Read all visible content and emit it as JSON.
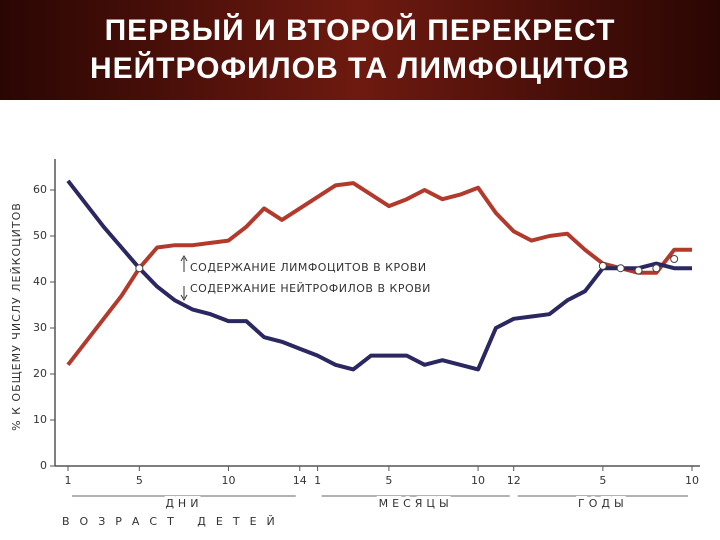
{
  "chart_data": {
    "type": "line",
    "title_lines": [
      "ПЕРВЫЙ И ВТОРОЙ ПЕРЕКРЕСТ",
      "НЕЙТРОФИЛОВ ТА ЛИМФОЦИТОВ"
    ],
    "y_label": "% К ОБЩЕМУ ЧИСЛУ ЛЕЙКОЦИТОВ",
    "x_label": "ВОЗРАСТ ДЕТЕЙ",
    "groups": [
      {
        "label": "ДНИ",
        "from": 0,
        "to": 13
      },
      {
        "label": "МЕСЯЦЫ",
        "from": 14,
        "to": 25
      },
      {
        "label": "ГОДЫ",
        "from": 25,
        "to": 35
      }
    ],
    "categories": [
      "1",
      null,
      null,
      null,
      "5",
      null,
      null,
      null,
      null,
      "10",
      null,
      null,
      null,
      "14",
      "1",
      null,
      null,
      null,
      "5",
      null,
      null,
      null,
      null,
      "10",
      null,
      "12",
      null,
      null,
      null,
      null,
      "5",
      null,
      null,
      null,
      null,
      "10"
    ],
    "series": [
      {
        "name": "СОДЕРЖАНИЕ ЛИМФОЦИТОВ В КРОВИ",
        "color": "#b23a2c",
        "values": [
          22,
          27,
          32,
          37,
          43,
          47.5,
          48,
          48,
          48.5,
          49,
          52,
          56,
          53.5,
          56,
          58.5,
          61,
          61.5,
          59,
          56.5,
          58,
          60,
          58,
          59,
          60.5,
          55,
          51,
          49,
          50,
          50.5,
          47,
          44,
          43,
          42,
          42,
          47,
          47
        ]
      },
      {
        "name": "СОДЕРЖАНИЕ НЕЙТРОФИЛОВ В КРОВИ",
        "color": "#2b2761",
        "values": [
          62,
          57,
          52,
          47.5,
          43,
          39,
          36,
          34,
          33,
          31.5,
          31.5,
          28,
          27,
          25.5,
          24,
          22,
          21,
          24,
          24,
          24,
          22,
          23,
          22,
          21,
          30,
          32,
          32.5,
          33,
          36,
          38,
          43,
          43,
          43,
          44,
          43,
          43
        ]
      }
    ],
    "ylim": [
      0,
      65
    ],
    "yticks": [
      0,
      10,
      20,
      30,
      40,
      50,
      60
    ]
  }
}
